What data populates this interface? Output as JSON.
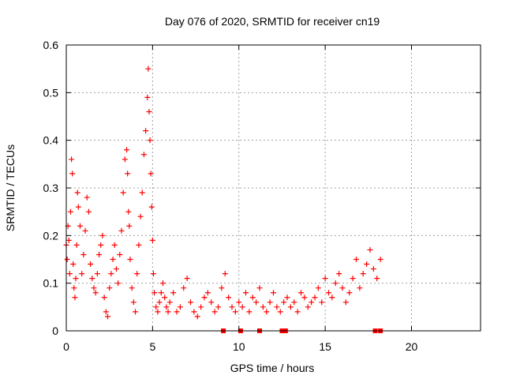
{
  "chart_data": {
    "type": "scatter",
    "title": "Day 076 of 2020, SRMTID for receiver cn19",
    "xlabel": "GPS time / hours",
    "ylabel": "SRMTID / TECUs",
    "xlim": [
      0,
      24
    ],
    "ylim": [
      0,
      0.6
    ],
    "xticks": [
      0,
      5,
      10,
      15,
      20
    ],
    "xtick_labels": [
      "0",
      "5",
      "10",
      "15",
      "20"
    ],
    "yticks": [
      0,
      0.1,
      0.2,
      0.3,
      0.4,
      0.5,
      0.6
    ],
    "ytick_labels": [
      "0",
      "0.1",
      "0.2",
      "0.3",
      "0.4",
      "0.5",
      "0.6"
    ],
    "grid": true,
    "marker_color": "#ff0000",
    "series": [
      {
        "name": "SRMTID",
        "marker": "plus",
        "x": [
          0.0,
          0.05,
          0.1,
          0.15,
          0.2,
          0.25,
          0.3,
          0.35,
          0.4,
          0.45,
          0.5,
          0.55,
          0.6,
          0.65,
          0.7,
          0.8,
          0.9,
          1.0,
          1.1,
          1.2,
          1.3,
          1.4,
          1.5,
          1.6,
          1.7,
          1.8,
          1.9,
          2.0,
          2.1,
          2.2,
          2.3,
          2.4,
          2.5,
          2.6,
          2.7,
          2.8,
          2.9,
          3.0,
          3.1,
          3.2,
          3.3,
          3.4,
          3.5,
          3.55,
          3.6,
          3.65,
          3.7,
          3.8,
          3.9,
          4.0,
          4.1,
          4.2,
          4.3,
          4.4,
          4.5,
          4.6,
          4.7,
          4.75,
          4.8,
          4.85,
          4.9,
          4.95,
          5.0,
          5.05,
          5.1,
          5.2,
          5.3,
          5.4,
          5.5,
          5.6,
          5.7,
          5.8,
          5.9,
          6.0,
          6.2,
          6.4,
          6.6,
          6.8,
          7.0,
          7.2,
          7.4,
          7.6,
          7.8,
          8.0,
          8.2,
          8.4,
          8.6,
          8.8,
          9.0,
          9.2,
          9.4,
          9.6,
          9.8,
          10.0,
          10.2,
          10.4,
          10.6,
          10.8,
          11.0,
          11.2,
          11.4,
          11.6,
          11.8,
          12.0,
          12.2,
          12.4,
          12.6,
          12.8,
          13.0,
          13.2,
          13.4,
          13.6,
          13.8,
          14.0,
          14.2,
          14.4,
          14.6,
          14.8,
          15.0,
          15.2,
          15.4,
          15.6,
          15.8,
          16.0,
          16.2,
          16.4,
          16.6,
          16.8,
          17.0,
          17.2,
          17.4,
          17.6,
          17.8,
          18.0,
          18.2
        ],
        "y": [
          0.18,
          0.15,
          0.22,
          0.19,
          0.12,
          0.25,
          0.36,
          0.33,
          0.14,
          0.09,
          0.07,
          0.11,
          0.18,
          0.29,
          0.26,
          0.22,
          0.12,
          0.16,
          0.21,
          0.28,
          0.25,
          0.14,
          0.11,
          0.09,
          0.08,
          0.12,
          0.16,
          0.18,
          0.2,
          0.07,
          0.04,
          0.03,
          0.09,
          0.12,
          0.15,
          0.18,
          0.13,
          0.1,
          0.16,
          0.21,
          0.29,
          0.36,
          0.38,
          0.33,
          0.25,
          0.22,
          0.15,
          0.09,
          0.06,
          0.04,
          0.12,
          0.18,
          0.24,
          0.29,
          0.37,
          0.42,
          0.49,
          0.55,
          0.46,
          0.4,
          0.33,
          0.26,
          0.19,
          0.12,
          0.08,
          0.05,
          0.04,
          0.06,
          0.08,
          0.1,
          0.07,
          0.05,
          0.04,
          0.06,
          0.08,
          0.04,
          0.05,
          0.09,
          0.11,
          0.06,
          0.04,
          0.03,
          0.05,
          0.07,
          0.08,
          0.06,
          0.04,
          0.05,
          0.09,
          0.12,
          0.07,
          0.05,
          0.04,
          0.06,
          0.05,
          0.08,
          0.04,
          0.07,
          0.06,
          0.09,
          0.05,
          0.04,
          0.06,
          0.08,
          0.05,
          0.04,
          0.06,
          0.07,
          0.05,
          0.06,
          0.04,
          0.08,
          0.07,
          0.05,
          0.06,
          0.07,
          0.09,
          0.06,
          0.11,
          0.08,
          0.07,
          0.1,
          0.12,
          0.09,
          0.06,
          0.08,
          0.11,
          0.15,
          0.09,
          0.12,
          0.14,
          0.17,
          0.13,
          0.11,
          0.15
        ]
      },
      {
        "name": "zero-level markers",
        "marker": "square",
        "x": [
          9.1,
          10.1,
          11.2,
          12.5,
          12.6,
          12.7,
          17.9,
          18.2
        ],
        "y": [
          0,
          0,
          0,
          0,
          0,
          0,
          0,
          0
        ]
      }
    ]
  }
}
